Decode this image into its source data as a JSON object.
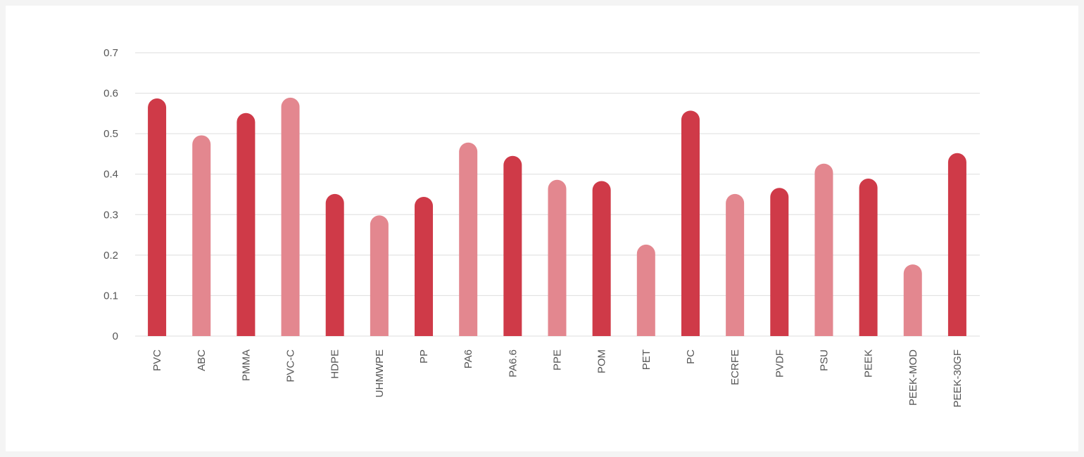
{
  "chart_data": {
    "type": "bar",
    "categories": [
      "PVC",
      "ABC",
      "PMMA",
      "PVC-C",
      "HDPE",
      "UHMWPE",
      "PP",
      "PA6",
      "PA6.6",
      "PPE",
      "POM",
      "PET",
      "PC",
      "ECRFE",
      "PVDF",
      "PSU",
      "PEEK",
      "PEEK-MOD",
      "PEEK-30GF"
    ],
    "values": [
      0.587,
      0.496,
      0.551,
      0.589,
      0.351,
      0.298,
      0.344,
      0.478,
      0.445,
      0.386,
      0.383,
      0.226,
      0.557,
      0.351,
      0.366,
      0.426,
      0.389,
      0.177,
      0.452
    ],
    "bar_shades": [
      "dark",
      "light",
      "dark",
      "light",
      "dark",
      "light",
      "dark",
      "light",
      "dark",
      "light",
      "dark",
      "light",
      "dark",
      "light",
      "dark",
      "light",
      "dark",
      "light",
      "dark"
    ],
    "colors": {
      "dark": "#cf3a48",
      "light": "#e3878f"
    },
    "y_ticks": [
      "0",
      "0.1",
      "0.2",
      "0.3",
      "0.4",
      "0.5",
      "0.6",
      "0.7"
    ],
    "ylim": [
      0,
      0.7
    ],
    "grid": true,
    "title": "",
    "xlabel": "",
    "ylabel": ""
  }
}
